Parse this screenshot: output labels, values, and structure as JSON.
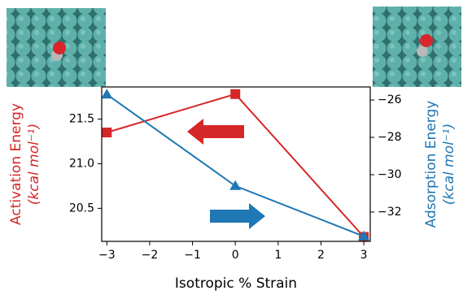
{
  "chart_data": {
    "type": "line",
    "xlabel": "Isotropic % Strain",
    "ylabel": "Activation Energy",
    "ylabel_unit": "(kcal mol⁻¹)",
    "y2label": "Adsorption Energy",
    "y2label_unit": "(kcal mol⁻¹)",
    "x": [
      -3,
      0,
      3
    ],
    "series": [
      {
        "name": "Activation Energy",
        "color": "#d62728",
        "marker": "square",
        "values": [
          21.35,
          21.78,
          20.18
        ]
      },
      {
        "name": "Adsorption Energy",
        "color": "#1f77b4",
        "marker": "triangle",
        "axis": "y2",
        "values": [
          -25.7,
          -30.6,
          -33.3
        ]
      }
    ],
    "xlim": [
      -3.12,
      3.15
    ],
    "xticks": [
      {
        "value": -3,
        "label": "−3"
      },
      {
        "value": -2,
        "label": "−2"
      },
      {
        "value": -1,
        "label": "−1"
      },
      0,
      1,
      2,
      3
    ],
    "ylim": [
      20.13,
      21.86
    ],
    "yticks": [
      20.5,
      {
        "value": 21,
        "label": "21.0"
      },
      21.5
    ],
    "y2lim": [
      -33.57,
      -25.3
    ],
    "y2ticks": [
      {
        "value": -32,
        "label": "−32"
      },
      {
        "value": -30,
        "label": "−30"
      },
      {
        "value": -28,
        "label": "−28"
      },
      {
        "value": -26,
        "label": "−26"
      }
    ]
  }
}
